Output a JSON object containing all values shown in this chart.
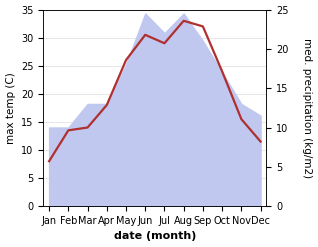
{
  "months": [
    "Jan",
    "Feb",
    "Mar",
    "Apr",
    "May",
    "Jun",
    "Jul",
    "Aug",
    "Sep",
    "Oct",
    "Nov",
    "Dec"
  ],
  "temp": [
    8,
    13.5,
    14,
    18,
    26,
    30.5,
    29,
    33,
    32,
    24,
    15.5,
    11.5
  ],
  "precip": [
    10,
    10,
    13,
    13,
    18,
    24.5,
    22,
    24.5,
    21,
    17,
    13,
    11.5
  ],
  "temp_color": "#b03030",
  "precip_color": "#c0c8f0",
  "ylim_left": [
    0,
    35
  ],
  "ylim_right": [
    0,
    25
  ],
  "ylabel_left": "max temp (C)",
  "ylabel_right": "med. precipitation (kg/m2)",
  "xlabel": "date (month)",
  "bg_color": "#ffffff",
  "grid_color": "#dddddd",
  "temp_linewidth": 1.6,
  "xlabel_fontsize": 8,
  "ylabel_fontsize": 7.5,
  "tick_fontsize": 7
}
